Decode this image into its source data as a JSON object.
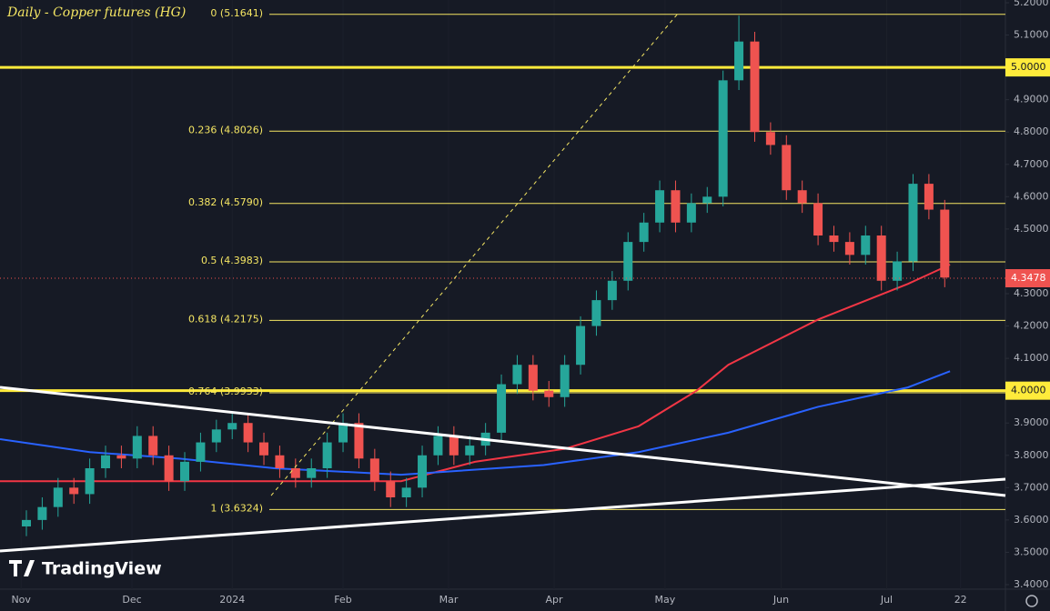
{
  "chart_data": {
    "type": "candlestick",
    "title": "Daily - Copper futures (HG)",
    "brand": "TradingView",
    "x": [
      1,
      4,
      7,
      10,
      13,
      16,
      19,
      22,
      25,
      28,
      31,
      34,
      37,
      40,
      43,
      46,
      49,
      52,
      55,
      58,
      61,
      64,
      67,
      70,
      73,
      76,
      79,
      82,
      85,
      88,
      91,
      94,
      97,
      100,
      103,
      106,
      109,
      112,
      115,
      118,
      121,
      124,
      127,
      130,
      133,
      136,
      139,
      142,
      145,
      148,
      151,
      154,
      157,
      160,
      163,
      166,
      169,
      172,
      175
    ],
    "open": [
      3.58,
      3.6,
      3.64,
      3.7,
      3.68,
      3.76,
      3.8,
      3.79,
      3.86,
      3.8,
      3.72,
      3.78,
      3.84,
      3.88,
      3.9,
      3.84,
      3.8,
      3.76,
      3.73,
      3.76,
      3.84,
      3.9,
      3.79,
      3.72,
      3.67,
      3.7,
      3.8,
      3.86,
      3.8,
      3.83,
      3.87,
      4.02,
      4.08,
      4.0,
      3.98,
      4.08,
      4.2,
      4.28,
      4.34,
      4.46,
      4.52,
      4.62,
      4.52,
      4.58,
      4.6,
      4.96,
      5.08,
      4.8,
      4.76,
      4.62,
      4.58,
      4.48,
      4.46,
      4.42,
      4.48,
      4.34,
      4.4,
      4.64,
      4.56
    ],
    "high": [
      3.63,
      3.67,
      3.73,
      3.73,
      3.79,
      3.83,
      3.83,
      3.89,
      3.89,
      3.83,
      3.81,
      3.87,
      3.91,
      3.93,
      3.93,
      3.87,
      3.83,
      3.79,
      3.79,
      3.87,
      3.93,
      3.93,
      3.82,
      3.75,
      3.73,
      3.83,
      3.89,
      3.89,
      3.86,
      3.9,
      4.05,
      4.11,
      4.11,
      4.03,
      4.11,
      4.23,
      4.31,
      4.37,
      4.49,
      4.55,
      4.65,
      4.65,
      4.61,
      4.63,
      4.99,
      5.16,
      5.11,
      4.83,
      4.79,
      4.65,
      4.61,
      4.51,
      4.49,
      4.51,
      4.51,
      4.43,
      4.67,
      4.67,
      4.59
    ],
    "low": [
      3.55,
      3.57,
      3.61,
      3.65,
      3.65,
      3.73,
      3.76,
      3.76,
      3.77,
      3.69,
      3.69,
      3.75,
      3.81,
      3.85,
      3.81,
      3.77,
      3.73,
      3.7,
      3.7,
      3.73,
      3.81,
      3.76,
      3.69,
      3.64,
      3.64,
      3.67,
      3.77,
      3.77,
      3.77,
      3.8,
      3.84,
      3.99,
      3.97,
      3.95,
      3.95,
      4.05,
      4.17,
      4.25,
      4.31,
      4.43,
      4.49,
      4.49,
      4.49,
      4.55,
      4.57,
      4.93,
      4.77,
      4.73,
      4.59,
      4.55,
      4.45,
      4.43,
      4.39,
      4.39,
      4.31,
      4.31,
      4.37,
      4.53,
      4.32
    ],
    "close": [
      3.6,
      3.64,
      3.7,
      3.68,
      3.76,
      3.8,
      3.79,
      3.86,
      3.8,
      3.72,
      3.78,
      3.84,
      3.88,
      3.9,
      3.84,
      3.8,
      3.76,
      3.73,
      3.76,
      3.84,
      3.9,
      3.79,
      3.72,
      3.67,
      3.7,
      3.8,
      3.86,
      3.8,
      3.83,
      3.87,
      4.02,
      4.08,
      4.0,
      3.98,
      4.08,
      4.2,
      4.28,
      4.34,
      4.46,
      4.52,
      4.62,
      4.52,
      4.58,
      4.6,
      4.96,
      5.08,
      4.8,
      4.76,
      4.62,
      4.58,
      4.48,
      4.46,
      4.42,
      4.48,
      4.34,
      4.4,
      4.64,
      4.56,
      4.35
    ],
    "up_color": "#26a69a",
    "down_color": "#ef5350",
    "moving_averages": [
      {
        "color": "#f23645",
        "x": [
          -4,
          40,
          72,
          86,
          103,
          117,
          128,
          134,
          151,
          168,
          176
        ],
        "values": [
          3.72,
          3.72,
          3.72,
          3.78,
          3.82,
          3.89,
          4.0,
          4.08,
          4.22,
          4.33,
          4.39
        ]
      },
      {
        "color": "#2962ff",
        "x": [
          -4,
          13,
          30,
          48,
          72,
          99,
          117,
          134,
          151,
          168,
          176
        ],
        "values": [
          3.85,
          3.81,
          3.79,
          3.76,
          3.74,
          3.77,
          3.81,
          3.87,
          3.95,
          4.01,
          4.06
        ]
      }
    ],
    "fib_levels": [
      {
        "value": 5.1641,
        "label": "0 (5.1641)"
      },
      {
        "value": 4.8026,
        "label": "0.236 (4.8026)"
      },
      {
        "value": 4.579,
        "label": "0.382 (4.5790)"
      },
      {
        "value": 4.3983,
        "label": "0.5 (4.3983)"
      },
      {
        "value": 4.2175,
        "label": "0.618 (4.2175)"
      },
      {
        "value": 3.9933,
        "label": "0.764 (3.9933)"
      },
      {
        "value": 3.6324,
        "label": "1 (3.6324)"
      }
    ],
    "key_levels": [
      {
        "value": 5,
        "label": "5.0000"
      },
      {
        "value": 4,
        "label": "4.0000"
      }
    ],
    "last_price": {
      "value": 4.3478,
      "label": "4.3478"
    },
    "xlim": [
      -4,
      186.5
    ],
    "ylim": [
      3.4,
      5.2
    ],
    "xticks": [
      {
        "value": 0,
        "label": "Nov"
      },
      {
        "value": 21,
        "label": "Dec"
      },
      {
        "value": 40,
        "label": "2024"
      },
      {
        "value": 61,
        "label": "Feb"
      },
      {
        "value": 81,
        "label": "Mar"
      },
      {
        "value": 101,
        "label": "Apr"
      },
      {
        "value": 122,
        "label": "May"
      },
      {
        "value": 144,
        "label": "Jun"
      },
      {
        "value": 164,
        "label": "Jul"
      },
      {
        "value": 178,
        "label": "22"
      }
    ],
    "yticks": [
      {
        "value": 5.2,
        "label": "5.2000"
      },
      {
        "value": 5.1,
        "label": "5.1000"
      },
      {
        "value": 4.9,
        "label": "4.9000"
      },
      {
        "value": 4.8,
        "label": "4.8000"
      },
      {
        "value": 4.7,
        "label": "4.7000"
      },
      {
        "value": 4.6,
        "label": "4.6000"
      },
      {
        "value": 4.5,
        "label": "4.5000"
      },
      {
        "value": 4.3,
        "label": "4.3000"
      },
      {
        "value": 4.2,
        "label": "4.2000"
      },
      {
        "value": 4.1,
        "label": "4.1000"
      },
      {
        "value": 3.9,
        "label": "3.9000"
      },
      {
        "value": 3.8,
        "label": "3.8000"
      },
      {
        "value": 3.7,
        "label": "3.7000"
      },
      {
        "value": 3.6,
        "label": "3.6000"
      },
      {
        "value": 3.5,
        "label": "3.5000"
      },
      {
        "value": 3.4,
        "label": "3.4000"
      }
    ]
  }
}
